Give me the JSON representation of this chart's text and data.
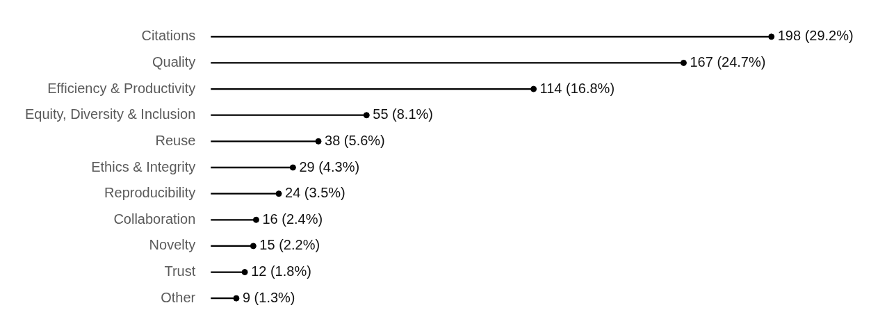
{
  "chart_data": {
    "type": "lollipop",
    "orientation": "horizontal",
    "tick_labels": "y",
    "marker": "circle",
    "categories": [
      "Citations",
      "Quality",
      "Efficiency & Productivity",
      "Equity, Diversity & Inclusion",
      "Reuse",
      "Ethics & Integrity",
      "Reproducibility",
      "Collaboration",
      "Novelty",
      "Trust",
      "Other"
    ],
    "series": [
      {
        "color": "#000000",
        "values": [
          198,
          167,
          114,
          55,
          38,
          29,
          24,
          16,
          15,
          12,
          9
        ],
        "value_labels": [
          "198 (29.2%)",
          "167 (24.7%)",
          "114 (16.8%)",
          "55 (8.1%)",
          "38 (5.6%)",
          "29 (4.3%)",
          "24 (3.5%)",
          "16 (2.4%)",
          "15 (2.2%)",
          "12 (1.8%)",
          "9 (1.3%)"
        ]
      }
    ]
  }
}
